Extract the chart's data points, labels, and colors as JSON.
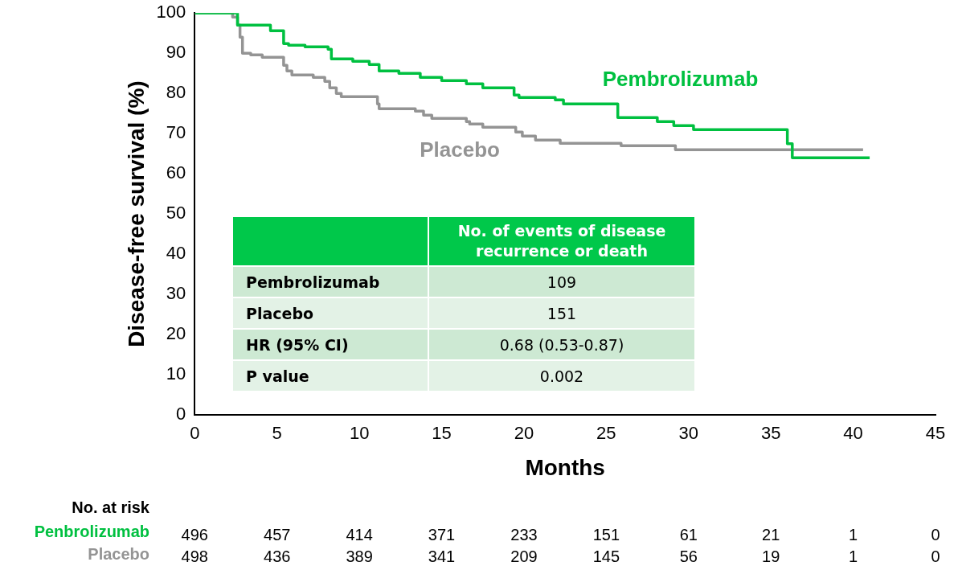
{
  "chart_data": {
    "type": "step",
    "xlabel": "Months",
    "ylabel": "Disease-free survival (%)",
    "xlim": [
      0,
      45
    ],
    "xticks": [
      0,
      5,
      10,
      15,
      20,
      25,
      30,
      35,
      40,
      45
    ],
    "ylim": [
      0,
      100
    ],
    "yticks": [
      0,
      10,
      20,
      30,
      40,
      50,
      60,
      70,
      80,
      90,
      100
    ],
    "grid": false,
    "legend": false,
    "series": [
      {
        "name": "Pembrolizumab",
        "color": "#00c040",
        "x": [
          0,
          2.6,
          4.6,
          5.4,
          5.7,
          6.7,
          8.1,
          8.3,
          9.6,
          10.6,
          11.2,
          12.4,
          13.7,
          15.0,
          16.5,
          17.5,
          19.4,
          19.7,
          21.9,
          22.4,
          25.7,
          28.1,
          29.1,
          30.3,
          36.0,
          36.3,
          41.0
        ],
        "values": [
          100,
          97,
          95.6,
          92.4,
          92,
          91.6,
          91,
          88.6,
          88,
          87.2,
          85.6,
          85,
          84,
          83.2,
          82.4,
          81.4,
          79.6,
          79,
          78.4,
          77.4,
          74,
          73,
          72,
          71,
          67.5,
          64,
          64
        ]
      },
      {
        "name": "Placebo",
        "color": "#949494",
        "x": [
          0,
          2.3,
          2.6,
          2.75,
          2.9,
          3.4,
          4.1,
          5.4,
          5.6,
          5.9,
          7.2,
          7.9,
          8.2,
          8.6,
          8.9,
          11.1,
          11.2,
          13.4,
          13.9,
          14.4,
          16.5,
          16.7,
          17.5,
          19.5,
          19.9,
          20.7,
          22.2,
          25.9,
          29.2,
          40.6
        ],
        "values": [
          100,
          99,
          97,
          94,
          90,
          89.6,
          89,
          87,
          85.6,
          84.6,
          84,
          83,
          81.4,
          80,
          79.2,
          77.4,
          76.2,
          75.6,
          74.6,
          73.8,
          73,
          72.4,
          71.6,
          70.4,
          69.4,
          68.4,
          67.6,
          67,
          66,
          66
        ]
      }
    ],
    "annotations": [
      "No. of events of disease recurrence or death",
      "Pembrolizumab",
      "109",
      "Placebo",
      "151",
      "HR (95% CI)",
      "0.68 (0.53-0.87)",
      "P value",
      "0.002",
      "No. at risk",
      "Penbrolizumab",
      "Placebo",
      "496",
      "457",
      "414",
      "371",
      "233",
      "151",
      "61",
      "21",
      "1",
      "0",
      "498",
      "436",
      "389",
      "341",
      "209",
      "145",
      "56",
      "19",
      "1",
      "0"
    ]
  }
}
